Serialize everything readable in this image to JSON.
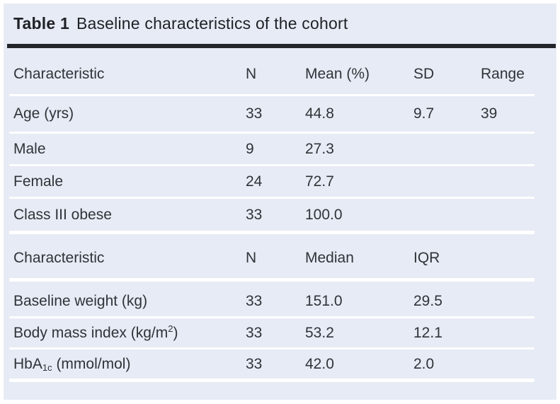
{
  "title": {
    "label": "Table 1",
    "text": "Baseline characteristics of the cohort"
  },
  "colors": {
    "panel_bg": "#e6ebf5",
    "rule": "#24252b",
    "title_text": "#1f2126",
    "body_text": "#303338",
    "separator": "#ffffff"
  },
  "section1": {
    "headers": {
      "characteristic": "Characteristic",
      "n": "N",
      "mean": "Mean (%)",
      "sd": "SD",
      "range": "Range"
    },
    "rows": [
      {
        "label": "Age (yrs)",
        "n": "33",
        "mean": "44.8",
        "sd": "9.7",
        "range": "39"
      },
      {
        "label": "Male",
        "n": "9",
        "mean": "27.3"
      },
      {
        "label": "Female",
        "n": "24",
        "mean": "72.7"
      },
      {
        "label": "Class III obese",
        "n": "33",
        "mean": "100.0"
      }
    ]
  },
  "section2": {
    "headers": {
      "characteristic": "Characteristic",
      "n": "N",
      "median": "Median",
      "iqr": "IQR"
    },
    "rows": [
      {
        "label": "Baseline weight (kg)",
        "n": "33",
        "median": "151.0",
        "iqr": "29.5"
      },
      {
        "label": "Body mass index (kg/m",
        "label_sup": "2",
        "label_end": ")",
        "n": "33",
        "median": "53.2",
        "iqr": "12.1"
      },
      {
        "label": "HbA",
        "label_sub": "1c",
        "label_end": " (mmol/mol)",
        "n": "33",
        "median": "42.0",
        "iqr": "2.0"
      }
    ]
  }
}
